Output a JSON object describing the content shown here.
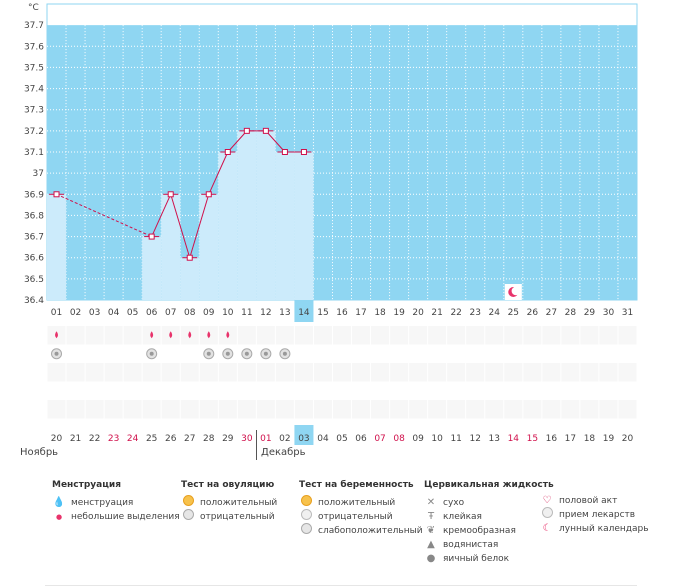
{
  "chart_data": {
    "type": "line",
    "ylabel": "°C",
    "ylim": [
      36.4,
      37.8
    ],
    "yticks": [
      "36.4",
      "36.5",
      "36.6",
      "36.7",
      "36.8",
      "36.9",
      "37",
      "37.1",
      "37.2",
      "37.3",
      "37.4",
      "37.5",
      "37.6",
      "37.7"
    ],
    "cycle_days": [
      "01",
      "02",
      "03",
      "04",
      "05",
      "06",
      "07",
      "08",
      "09",
      "10",
      "11",
      "12",
      "13",
      "14",
      "15",
      "16",
      "17",
      "18",
      "19",
      "20",
      "21",
      "22",
      "23",
      "24",
      "25",
      "26",
      "27",
      "28",
      "29",
      "30",
      "31"
    ],
    "current_day_index": 13,
    "temperatures": [
      36.9,
      null,
      null,
      null,
      null,
      36.7,
      36.9,
      36.6,
      36.9,
      37.1,
      37.2,
      37.2,
      37.1,
      37.1,
      null,
      null,
      null,
      null,
      null,
      null,
      null,
      null,
      null,
      null,
      null,
      null,
      null,
      null,
      null,
      null,
      null
    ],
    "menstruation_days": [
      "01",
      "06",
      "07",
      "08",
      "09",
      "10"
    ],
    "ovulation_test_negative_days": [
      "01",
      "06",
      "09",
      "10",
      "11",
      "12",
      "13"
    ],
    "moon_day": "25",
    "calendar_dates": [
      "20",
      "21",
      "22",
      "23",
      "24",
      "25",
      "26",
      "27",
      "28",
      "29",
      "30",
      "01",
      "02",
      "03",
      "04",
      "05",
      "06",
      "07",
      "08",
      "09",
      "10",
      "11",
      "12",
      "13",
      "14",
      "15",
      "16",
      "17",
      "18",
      "19",
      "20"
    ],
    "weekend_indices": [
      3,
      4,
      10,
      11,
      17,
      18,
      24,
      25
    ],
    "today_date_index": 13
  },
  "months": {
    "left": "Ноябрь",
    "right": "Декабрь"
  },
  "legend": {
    "menstruation": {
      "title": "Менструация",
      "items": [
        "менструация",
        "небольшие выделения"
      ]
    },
    "ovulation": {
      "title": "Тест на овуляцию",
      "items": [
        "положительный",
        "отрицательный"
      ]
    },
    "pregnancy": {
      "title": "Тест на беременность",
      "items": [
        "положительный",
        "отрицательный",
        "слабоположительный"
      ]
    },
    "cervical": {
      "title": "Цервикальная жидкость",
      "items": [
        "сухо",
        "клейкая",
        "кремообразная",
        "водянистая",
        "яичный белок"
      ]
    },
    "other": {
      "items": [
        "половой акт",
        "прием лекарств",
        "лунный календарь"
      ]
    }
  },
  "colors": {
    "sky": "#8fd6f2",
    "bar": "#ccebfb",
    "line": "#d0104b",
    "today": "#8fd6f2"
  }
}
